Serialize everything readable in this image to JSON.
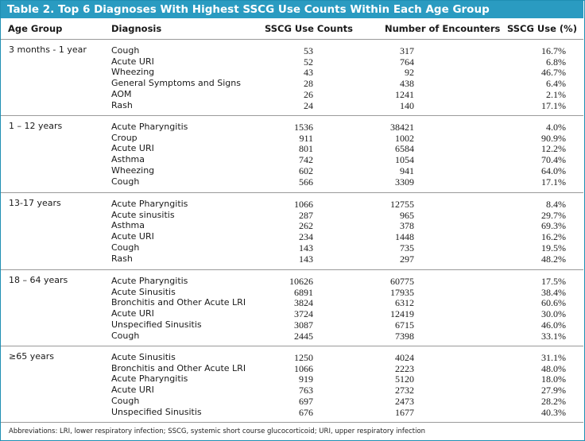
{
  "title": "Table 2. Top 6 Diagnoses With Highest SSCG Use Counts Within Each Age Group",
  "columns": [
    "Age Group",
    "Diagnosis",
    "SSCG Use Counts",
    "Number of Encounters",
    "SSCG Use (%)"
  ],
  "groups": [
    {
      "age": "3 months - 1 year",
      "rows": [
        {
          "diagnosis": "Cough",
          "count": "53",
          "encounters": "317",
          "pct": "16.7%"
        },
        {
          "diagnosis": "Acute URI",
          "count": "52",
          "encounters": "764",
          "pct": "6.8%"
        },
        {
          "diagnosis": "Wheezing",
          "count": "43",
          "encounters": "92",
          "pct": "46.7%"
        },
        {
          "diagnosis": "General Symptoms and Signs",
          "count": "28",
          "encounters": "438",
          "pct": "6.4%"
        },
        {
          "diagnosis": "AOM",
          "count": "26",
          "encounters": "1241",
          "pct": "2.1%"
        },
        {
          "diagnosis": "Rash",
          "count": "24",
          "encounters": "140",
          "pct": "17.1%"
        }
      ]
    },
    {
      "age": "1 – 12 years",
      "rows": [
        {
          "diagnosis": "Acute Pharyngitis",
          "count": "1536",
          "encounters": "38421",
          "pct": "4.0%"
        },
        {
          "diagnosis": "Croup",
          "count": "911",
          "encounters": "1002",
          "pct": "90.9%"
        },
        {
          "diagnosis": "Acute URI",
          "count": "801",
          "encounters": "6584",
          "pct": "12.2%"
        },
        {
          "diagnosis": "Asthma",
          "count": "742",
          "encounters": "1054",
          "pct": "70.4%"
        },
        {
          "diagnosis": "Wheezing",
          "count": "602",
          "encounters": "941",
          "pct": "64.0%"
        },
        {
          "diagnosis": "Cough",
          "count": "566",
          "encounters": "3309",
          "pct": "17.1%"
        }
      ]
    },
    {
      "age": "13-17 years",
      "rows": [
        {
          "diagnosis": "Acute Pharyngitis",
          "count": "1066",
          "encounters": "12755",
          "pct": "8.4%"
        },
        {
          "diagnosis": "Acute sinusitis",
          "count": "287",
          "encounters": "965",
          "pct": "29.7%"
        },
        {
          "diagnosis": "Asthma",
          "count": "262",
          "encounters": "378",
          "pct": "69.3%"
        },
        {
          "diagnosis": "Acute URI",
          "count": "234",
          "encounters": "1448",
          "pct": "16.2%"
        },
        {
          "diagnosis": "Cough",
          "count": "143",
          "encounters": "735",
          "pct": "19.5%"
        },
        {
          "diagnosis": "Rash",
          "count": "143",
          "encounters": "297",
          "pct": "48.2%"
        }
      ]
    },
    {
      "age": "18 – 64 years",
      "rows": [
        {
          "diagnosis": "Acute Pharyngitis",
          "count": "10626",
          "encounters": "60775",
          "pct": "17.5%"
        },
        {
          "diagnosis": "Acute Sinusitis",
          "count": "6891",
          "encounters": "17935",
          "pct": "38.4%"
        },
        {
          "diagnosis": "Bronchitis and Other Acute LRI",
          "count": "3824",
          "encounters": "6312",
          "pct": "60.6%"
        },
        {
          "diagnosis": "Acute URI",
          "count": "3724",
          "encounters": "12419",
          "pct": "30.0%"
        },
        {
          "diagnosis": "Unspecified Sinusitis",
          "count": "3087",
          "encounters": "6715",
          "pct": "46.0%"
        },
        {
          "diagnosis": "Cough",
          "count": "2445",
          "encounters": "7398",
          "pct": "33.1%"
        }
      ]
    },
    {
      "age": "≥65 years",
      "rows": [
        {
          "diagnosis": "Acute Sinusitis",
          "count": "1250",
          "encounters": "4024",
          "pct": "31.1%"
        },
        {
          "diagnosis": "Bronchitis and Other Acute LRI",
          "count": "1066",
          "encounters": "2223",
          "pct": "48.0%"
        },
        {
          "diagnosis": "Acute Pharyngitis",
          "count": "919",
          "encounters": "5120",
          "pct": "18.0%"
        },
        {
          "diagnosis": "Acute URI",
          "count": "763",
          "encounters": "2732",
          "pct": "27.9%"
        },
        {
          "diagnosis": "Cough",
          "count": "697",
          "encounters": "2473",
          "pct": "28.2%"
        },
        {
          "diagnosis": "Unspecified Sinusitis",
          "count": "676",
          "encounters": "1677",
          "pct": "40.3%"
        }
      ]
    }
  ],
  "footnote": "Abbreviations: LRI, lower respiratory infection; SSCG, systemic short course glucocorticoid; URI, upper respiratory infection"
}
